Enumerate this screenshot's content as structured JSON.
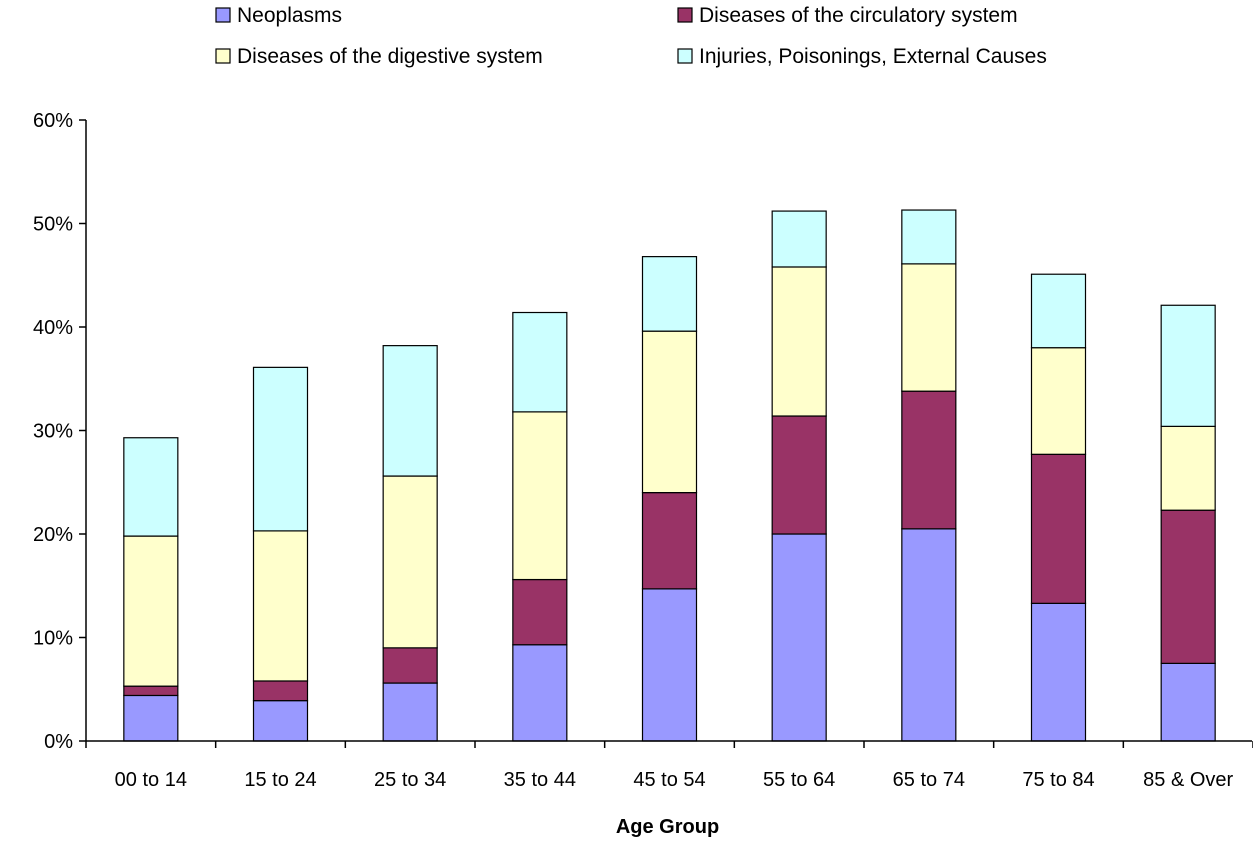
{
  "chart_data": {
    "type": "bar",
    "stacked": true,
    "title": "",
    "xlabel": "Age Group",
    "ylabel": "",
    "ylim": [
      0,
      0.6
    ],
    "y_ticks": [
      "0%",
      "10%",
      "20%",
      "30%",
      "40%",
      "50%",
      "60%"
    ],
    "y_tick_values": [
      0,
      0.1,
      0.2,
      0.3,
      0.4,
      0.5,
      0.6
    ],
    "grid": false,
    "legend_position": "top",
    "categories": [
      "00 to 14",
      "15 to 24",
      "25 to 34",
      "35 to 44",
      "45 to 54",
      "55 to 64",
      "65 to 74",
      "75 to 84",
      "85 & Over"
    ],
    "series": [
      {
        "name": "Neoplasms",
        "color": "#9999ff",
        "values": [
          0.044,
          0.039,
          0.056,
          0.093,
          0.147,
          0.2,
          0.205,
          0.133,
          0.075
        ]
      },
      {
        "name": "Diseases of the circulatory system",
        "color": "#993366",
        "values": [
          0.009,
          0.019,
          0.034,
          0.063,
          0.093,
          0.114,
          0.133,
          0.144,
          0.148
        ]
      },
      {
        "name": "Diseases of the digestive system",
        "color": "#ffffcc",
        "values": [
          0.145,
          0.145,
          0.166,
          0.162,
          0.156,
          0.144,
          0.123,
          0.103,
          0.081
        ]
      },
      {
        "name": "Injuries, Poisonings, External Causes",
        "color": "#ccffff",
        "values": [
          0.095,
          0.158,
          0.126,
          0.096,
          0.072,
          0.054,
          0.052,
          0.071,
          0.117
        ]
      }
    ]
  }
}
